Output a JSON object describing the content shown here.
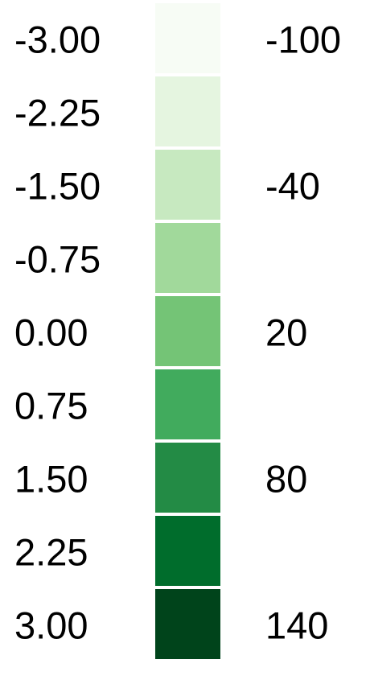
{
  "chart_data": {
    "type": "heatmap",
    "title": "",
    "scale_left": {
      "labels": [
        "-3.00",
        "-2.25",
        "-1.50",
        "-0.75",
        "0.00",
        "0.75",
        "1.50",
        "2.25",
        "3.00"
      ],
      "values": [
        -3.0,
        -2.25,
        -1.5,
        -0.75,
        0.0,
        0.75,
        1.5,
        2.25,
        3.0
      ]
    },
    "scale_right": {
      "labels": [
        "-100",
        "-40",
        "20",
        "80",
        "140"
      ],
      "values": [
        -100,
        -40,
        20,
        80,
        140
      ]
    },
    "bins": {
      "count": 9,
      "colors": [
        "#f7fcf5",
        "#e5f5e0",
        "#c7e9c0",
        "#a1d99b",
        "#74c476",
        "#41ab5d",
        "#238b45",
        "#006d2c",
        "#00441b"
      ]
    }
  }
}
